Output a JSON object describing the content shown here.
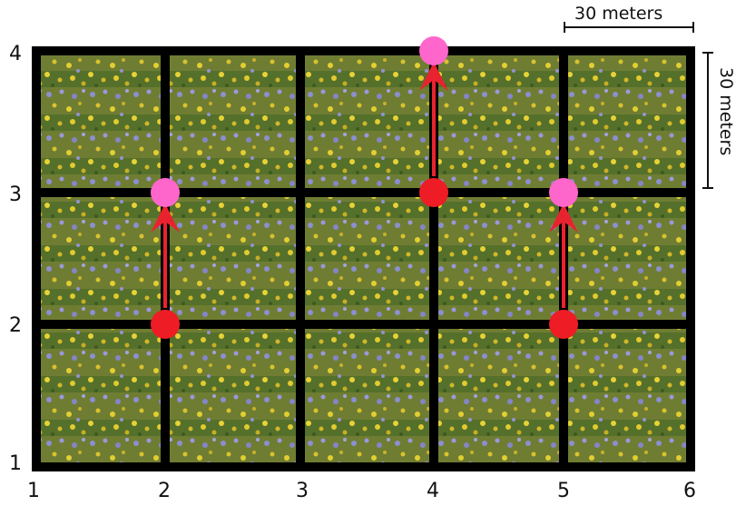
{
  "grid": {
    "x_ticks": [
      "1",
      "2",
      "3",
      "4",
      "5",
      "6"
    ],
    "y_ticks": [
      "1",
      "2",
      "3",
      "4"
    ],
    "cols": 5,
    "rows": 3,
    "colors": {
      "line": "#000000",
      "tile_bg": "#6f7d33"
    }
  },
  "scale": {
    "horizontal_label": "30 meters",
    "vertical_label": "30 meters"
  },
  "movements": [
    {
      "from": [
        2,
        2
      ],
      "to": [
        2,
        3
      ]
    },
    {
      "from": [
        4,
        3
      ],
      "to": [
        4,
        4
      ]
    },
    {
      "from": [
        5,
        2
      ],
      "to": [
        5,
        3
      ]
    }
  ],
  "markers": {
    "start_color": "#ee1c25",
    "end_color": "#ff66cc",
    "arrow_color": "#e8232f"
  },
  "tile_image": "wildflower-meadow-photo"
}
